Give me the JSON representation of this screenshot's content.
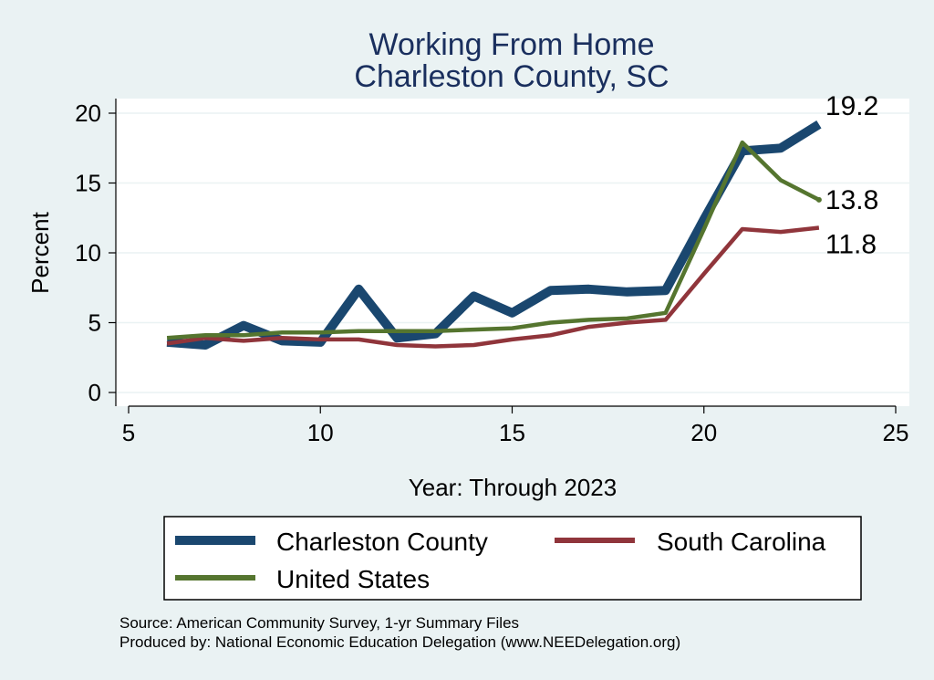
{
  "chart_data": {
    "type": "line",
    "title": [
      "Working From Home",
      "Charleston County, SC"
    ],
    "xlabel": "Year: Through 2023",
    "ylabel": "Percent",
    "xlim": [
      5,
      25
    ],
    "ylim": [
      0,
      21
    ],
    "xticks": [
      5,
      10,
      15,
      20,
      25
    ],
    "yticks": [
      0,
      5,
      10,
      15,
      20
    ],
    "grid": true,
    "series": [
      {
        "name": "Charleston County",
        "color": "#1a476f",
        "x": [
          6,
          7,
          8,
          9,
          10,
          11,
          12,
          13,
          14,
          15,
          16,
          17,
          18,
          19,
          20,
          21,
          22,
          23
        ],
        "values": [
          3.6,
          3.4,
          4.8,
          3.7,
          3.6,
          7.4,
          3.9,
          4.2,
          6.9,
          5.7,
          7.3,
          7.4,
          7.2,
          7.3,
          12.4,
          17.3,
          17.5,
          19.2
        ],
        "end_label": "19.2"
      },
      {
        "name": "South Carolina",
        "color": "#90353b",
        "x": [
          6,
          7,
          8,
          9,
          10,
          11,
          12,
          13,
          14,
          15,
          16,
          17,
          18,
          19,
          20,
          21,
          22,
          23
        ],
        "values": [
          3.5,
          3.9,
          3.7,
          3.9,
          3.8,
          3.8,
          3.4,
          3.3,
          3.4,
          3.8,
          4.1,
          4.7,
          5.0,
          5.2,
          8.5,
          11.7,
          11.5,
          11.8
        ],
        "end_label": "11.8"
      },
      {
        "name": "United States",
        "color": "#55752f",
        "x": [
          6,
          7,
          8,
          9,
          10,
          11,
          12,
          13,
          14,
          15,
          16,
          17,
          18,
          19,
          20,
          21,
          22,
          23
        ],
        "values": [
          3.9,
          4.1,
          4.1,
          4.3,
          4.3,
          4.4,
          4.4,
          4.4,
          4.5,
          4.6,
          5.0,
          5.2,
          5.3,
          5.7,
          11.7,
          17.9,
          15.2,
          13.8
        ],
        "end_label": "13.8"
      }
    ],
    "legend": [
      "Charleston County",
      "South Carolina",
      "United States"
    ]
  },
  "footer": {
    "source": "Source: American Community Survey, 1-yr Summary Files",
    "produced": "Produced by: National Economic Education Delegation (www.NEEDelegation.org)"
  }
}
